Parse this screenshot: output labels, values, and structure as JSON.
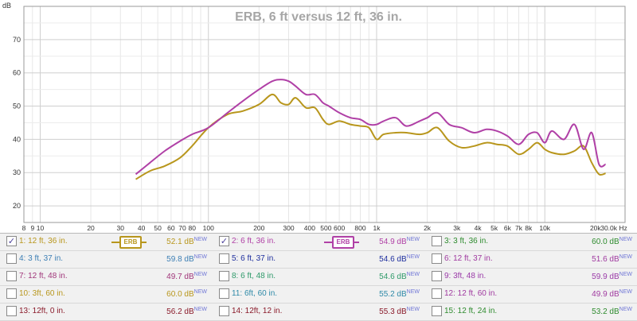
{
  "chart_data": {
    "type": "line",
    "title": "ERB, 6 ft versus 12 ft, 36 in.",
    "xscale": "log",
    "xlim": [
      8,
      30000
    ],
    "ylim": [
      15,
      80
    ],
    "yunit": "dB",
    "xunit": "Hz",
    "grid": true,
    "yticks": [
      20,
      30,
      40,
      50,
      60,
      70
    ],
    "ytick_labels": [
      "20",
      "30",
      "40",
      "50",
      "60",
      "70"
    ],
    "xticks": [
      8,
      9,
      10,
      20,
      30,
      40,
      50,
      60,
      70,
      80,
      100,
      200,
      300,
      400,
      500,
      600,
      800,
      1000,
      2000,
      3000,
      4000,
      5000,
      6000,
      7000,
      8000,
      10000,
      20000,
      30000
    ],
    "xtick_labels": [
      "8",
      "9",
      "10",
      "20",
      "30",
      "40",
      "50",
      "60",
      "70",
      "80",
      "100",
      "200",
      "300",
      "400",
      "500",
      "600",
      "800",
      "1k",
      "2k",
      "3k",
      "4k",
      "5k",
      "6k",
      "7k",
      "8k",
      "10k",
      "20k",
      "30.0k Hz"
    ],
    "series": [
      {
        "name": "1: 12 ft, 36 in.",
        "color": "#b8961c",
        "x": [
          37,
          45,
          55,
          68,
          80,
          100,
          130,
          160,
          200,
          240,
          270,
          300,
          330,
          380,
          430,
          480,
          520,
          600,
          700,
          800,
          900,
          1000,
          1100,
          1300,
          1500,
          1800,
          2000,
          2300,
          2700,
          3200,
          3800,
          4500,
          5200,
          6000,
          7000,
          8000,
          9000,
          10000,
          11000,
          13000,
          15000,
          17000,
          19000,
          21000,
          23000
        ],
        "y": [
          28,
          30.5,
          32,
          34.5,
          38,
          43.5,
          47.5,
          48.5,
          50.5,
          53.5,
          51,
          50.5,
          52.5,
          49.5,
          49.5,
          46,
          44.5,
          45.5,
          44.5,
          44,
          43.5,
          40,
          41.5,
          42,
          42,
          41.5,
          42,
          43.5,
          39.5,
          37.5,
          38,
          39,
          38.5,
          38,
          35.5,
          37,
          39,
          37,
          36,
          35.5,
          36.5,
          38,
          33,
          29.5,
          29.8
        ]
      },
      {
        "name": "2: 6 ft, 36 in.",
        "color": "#b040a6",
        "x": [
          37,
          45,
          55,
          68,
          80,
          100,
          130,
          160,
          200,
          240,
          270,
          300,
          330,
          380,
          430,
          480,
          520,
          600,
          700,
          800,
          900,
          1000,
          1100,
          1300,
          1500,
          1800,
          2000,
          2300,
          2700,
          3200,
          3800,
          4500,
          5200,
          6000,
          7000,
          8000,
          9000,
          10000,
          11000,
          13000,
          15000,
          17000,
          19000,
          21000,
          23000
        ],
        "y": [
          29.5,
          33,
          36.5,
          39.5,
          41.5,
          43.5,
          48,
          51.5,
          55,
          57.5,
          58,
          57.5,
          56,
          53.5,
          53.5,
          51,
          50,
          48,
          46.5,
          46,
          44.5,
          44.5,
          45.5,
          46.5,
          44,
          45.5,
          46.5,
          48,
          44.5,
          43.5,
          42,
          43,
          42.5,
          41,
          38.5,
          41.5,
          42,
          39,
          42.5,
          40,
          44.5,
          37,
          42,
          32.5,
          32.5
        ]
      }
    ]
  },
  "legend": {
    "rows": [
      [
        {
          "label": "1: 12 ft, 36 in.",
          "value": "52.1 dB",
          "new": "NEW",
          "checked": true,
          "color": "#b8961c",
          "badge": "ERB"
        },
        {
          "label": "2: 6 ft, 36 in.",
          "value": "54.9 dB",
          "new": "NEW",
          "checked": true,
          "color": "#b040a6",
          "badge": "ERB"
        },
        {
          "label": "3: 3 ft, 36 in.",
          "value": "60.0 dB",
          "new": "NEW",
          "checked": false,
          "color": "#2e8b2e"
        }
      ],
      [
        {
          "label": "4: 3 ft, 37 in.",
          "value": "59.8 dB",
          "new": "NEW",
          "checked": false,
          "color": "#3d7fb5"
        },
        {
          "label": "5: 6 ft, 37 in.",
          "value": "54.6 dB",
          "new": "NEW",
          "checked": false,
          "color": "#1f2f9e"
        },
        {
          "label": "6: 12 ft, 37 in.",
          "value": "51.6 dB",
          "new": "NEW",
          "checked": false,
          "color": "#a03aa0"
        }
      ],
      [
        {
          "label": "7: 12 ft, 48 in.",
          "value": "49.7 dB",
          "new": "NEW",
          "checked": false,
          "color": "#a0367a"
        },
        {
          "label": "8: 6 ft, 48 in.",
          "value": "54.6 dB",
          "new": "NEW",
          "checked": false,
          "color": "#2f9a6a"
        },
        {
          "label": "9: 3ft, 48 in.",
          "value": "59.9 dB",
          "new": "NEW",
          "checked": false,
          "color": "#9a3aa8"
        }
      ],
      [
        {
          "label": "10: 3ft, 60 in.",
          "value": "60.0 dB",
          "new": "NEW",
          "checked": false,
          "color": "#b8961c"
        },
        {
          "label": "11: 6ft, 60 in.",
          "value": "55.2 dB",
          "new": "NEW",
          "checked": false,
          "color": "#2f8aa8"
        },
        {
          "label": "12: 12 ft, 60 in.",
          "value": "49.9 dB",
          "new": "NEW",
          "checked": false,
          "color": "#a03aa0"
        }
      ],
      [
        {
          "label": "13: 12ft, 0 in.",
          "value": "56.2 dB",
          "new": "NEW",
          "checked": false,
          "color": "#8a1a2a"
        },
        {
          "label": "14: 12ft, 12 in.",
          "value": "55.3 dB",
          "new": "NEW",
          "checked": false,
          "color": "#8a1a2a"
        },
        {
          "label": "15: 12 ft, 24 in.",
          "value": "53.2 dB",
          "new": "NEW",
          "checked": false,
          "color": "#2e8b2e"
        }
      ]
    ]
  }
}
